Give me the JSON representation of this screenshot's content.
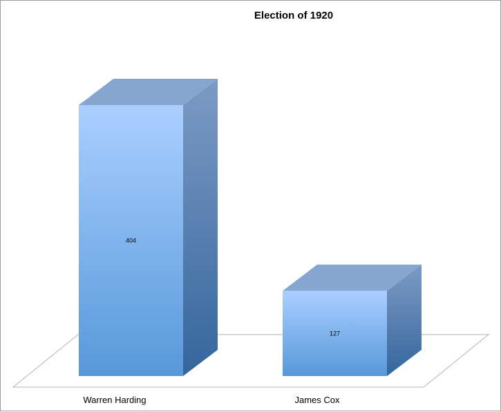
{
  "chart_data": {
    "type": "bar",
    "title": "Election of 1920",
    "categories": [
      "Warren Harding",
      "James Cox"
    ],
    "values": [
      404,
      127
    ],
    "data_labels": [
      "404",
      "127"
    ],
    "xlabel": "",
    "ylabel": "",
    "ylim": [
      0,
      404
    ],
    "grid": false,
    "legend": "none",
    "colors": {
      "bar_front_top": "#aacfff",
      "bar_front_bottom": "#5798da",
      "bar_side_top": "#7d9ac5",
      "bar_side_bottom": "#34669c",
      "bar_top": "#86a5d0",
      "floor_stroke": "#b3b3b3"
    }
  }
}
